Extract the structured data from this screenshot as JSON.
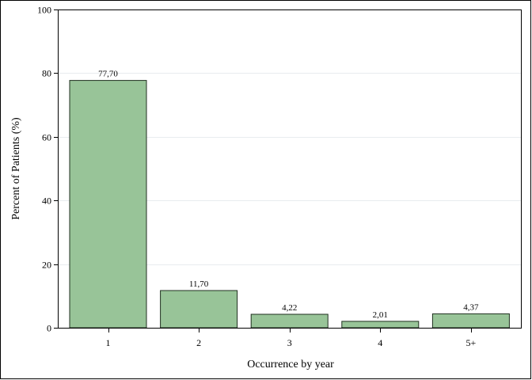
{
  "chart_data": {
    "type": "bar",
    "title": "",
    "xlabel": "Occurrence by year",
    "ylabel": "Percent of Patients (%)",
    "categories": [
      "1",
      "2",
      "3",
      "4",
      "5+"
    ],
    "values": [
      77.7,
      11.7,
      4.22,
      2.01,
      4.37
    ],
    "value_labels": [
      "77,70",
      "11,70",
      "4,22",
      "2,01",
      "4,37"
    ],
    "ylim": [
      0,
      100
    ],
    "yticks": [
      0,
      20,
      40,
      60,
      80,
      100
    ],
    "ytick_labels": [
      "0",
      "20",
      "40",
      "60",
      "80",
      "100"
    ],
    "grid": true,
    "legend": "none",
    "colors": {
      "bar_fill": "#98c498",
      "bar_stroke": "#1f2f1f",
      "grid": "#e8ecef",
      "axis": "#000000"
    }
  }
}
